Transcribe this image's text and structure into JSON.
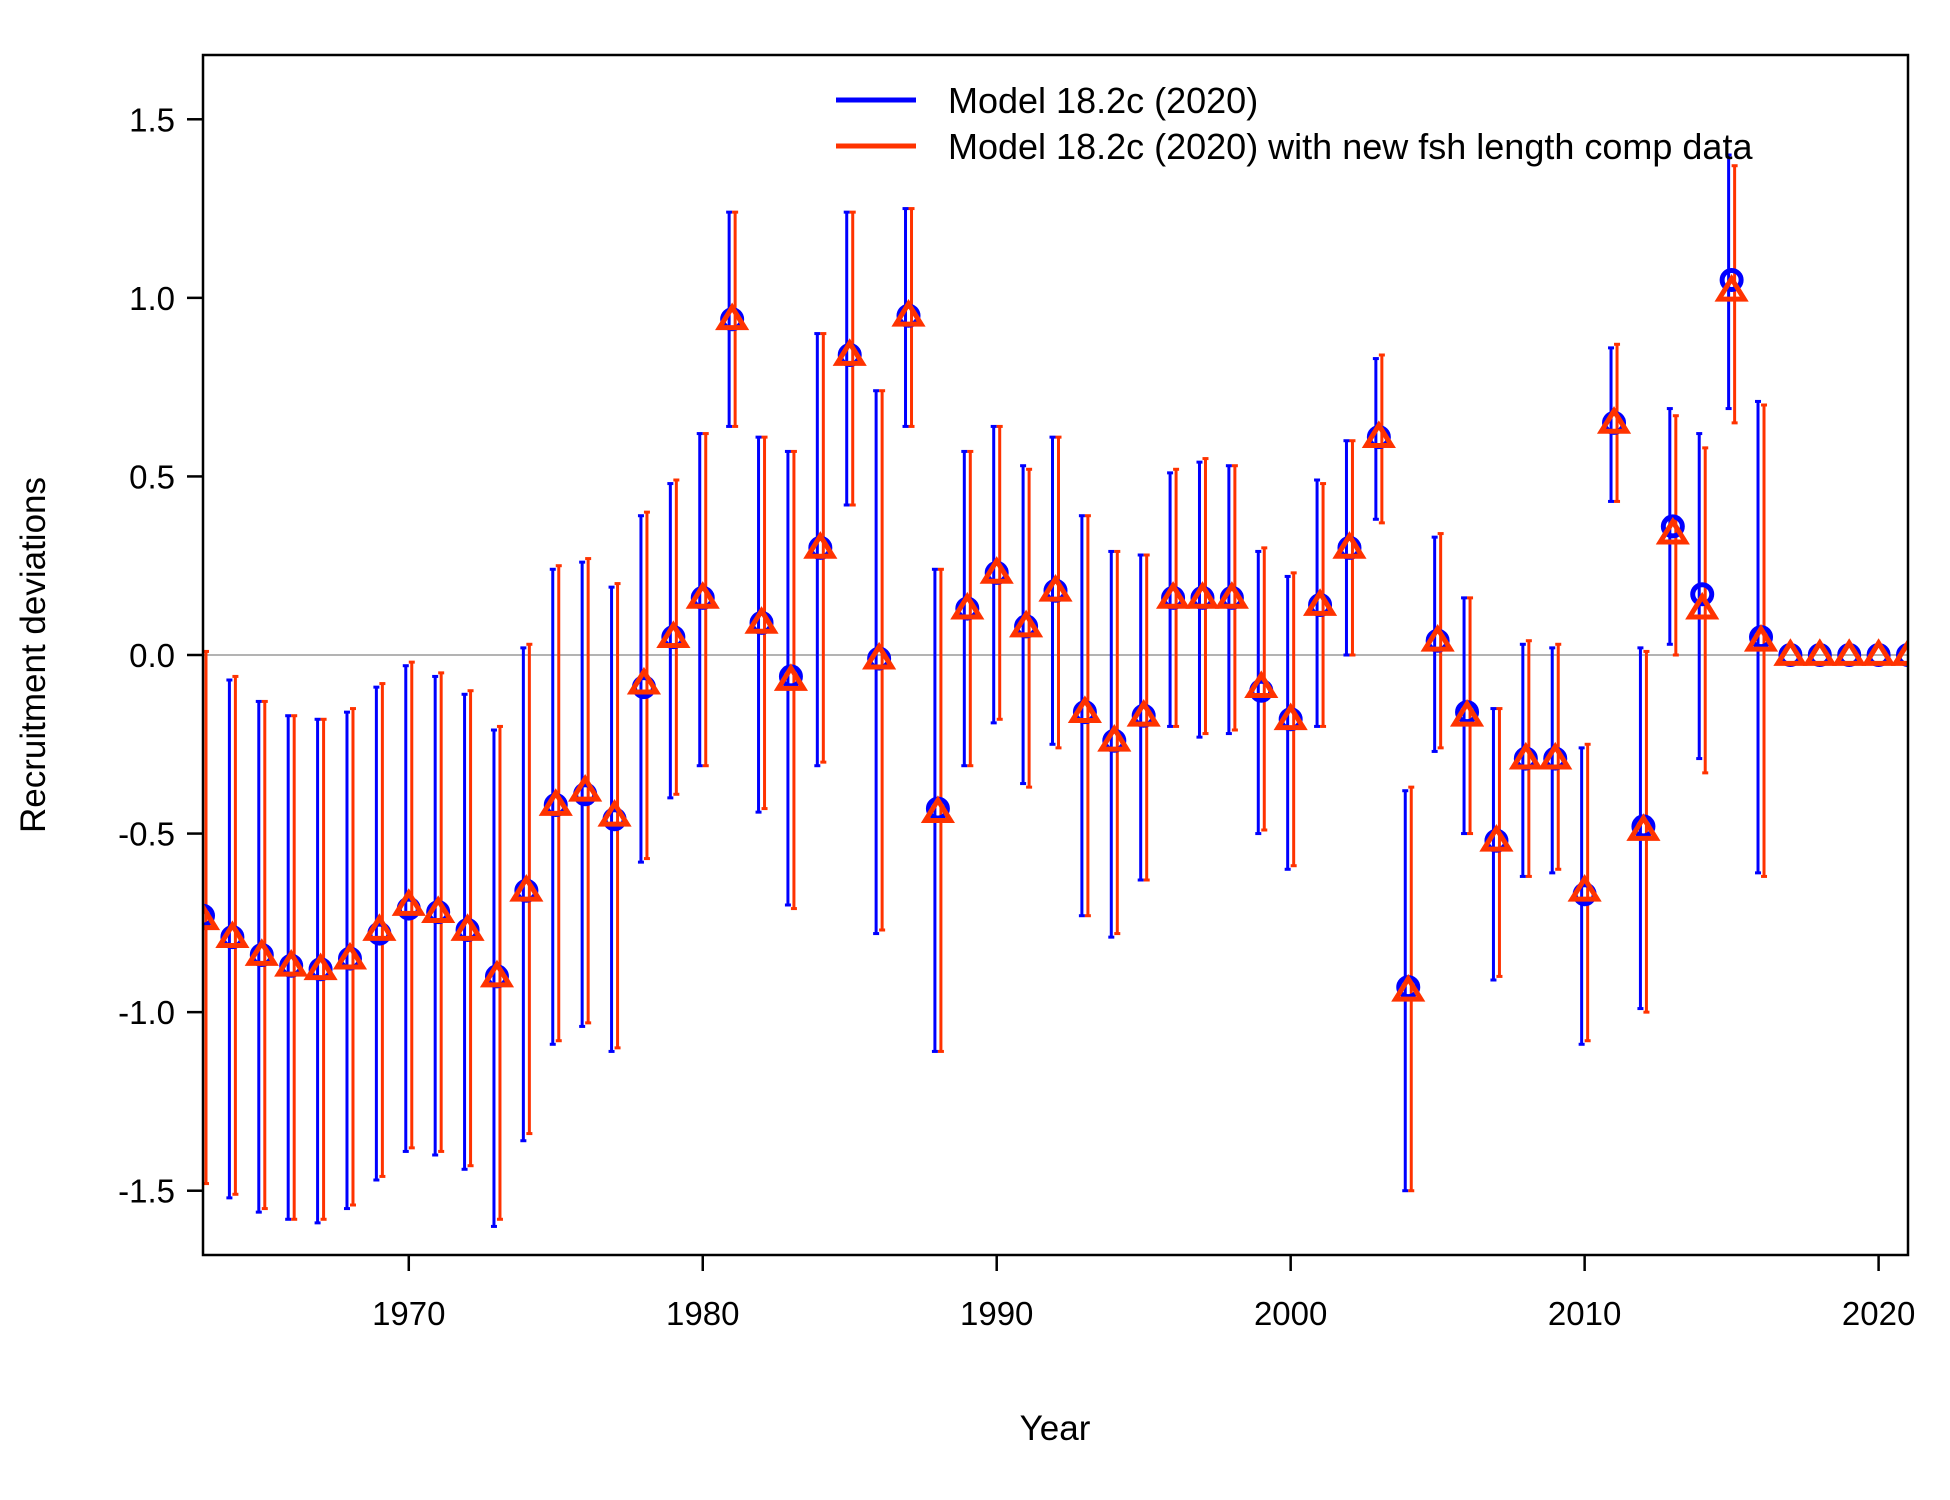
{
  "chart_data": {
    "type": "scatter",
    "xlabel": "Year",
    "ylabel": "Recruitment deviations",
    "xlim": [
      1963,
      2021
    ],
    "ylim": [
      -1.68,
      1.68
    ],
    "x_ticks": [
      1970,
      1980,
      1990,
      2000,
      2010,
      2020
    ],
    "x_tick_labels": [
      "1970",
      "1980",
      "1990",
      "2000",
      "2010",
      "2020"
    ],
    "y_ticks": [
      -1.5,
      -1.0,
      -0.5,
      0.0,
      0.5,
      1.0,
      1.5
    ],
    "y_tick_labels": [
      "-1.5",
      "-1.0",
      "-0.5",
      "0.0",
      "0.5",
      "1.0",
      "1.5"
    ],
    "reference_line_y": 0,
    "grid": false,
    "legend_position": "top-right",
    "series": [
      {
        "name": "Model 18.2c (2020)",
        "color": "#0000ff",
        "marker": "circle",
        "points": [
          {
            "x": 1963,
            "y": -0.73,
            "lo": -1.48,
            "hi": 0.01
          },
          {
            "x": 1964,
            "y": -0.79,
            "lo": -1.52,
            "hi": -0.07
          },
          {
            "x": 1965,
            "y": -0.84,
            "lo": -1.56,
            "hi": -0.13
          },
          {
            "x": 1966,
            "y": -0.87,
            "lo": -1.58,
            "hi": -0.17
          },
          {
            "x": 1967,
            "y": -0.88,
            "lo": -1.59,
            "hi": -0.18
          },
          {
            "x": 1968,
            "y": -0.85,
            "lo": -1.55,
            "hi": -0.16
          },
          {
            "x": 1969,
            "y": -0.78,
            "lo": -1.47,
            "hi": -0.09
          },
          {
            "x": 1970,
            "y": -0.71,
            "lo": -1.39,
            "hi": -0.03
          },
          {
            "x": 1971,
            "y": -0.72,
            "lo": -1.4,
            "hi": -0.06
          },
          {
            "x": 1972,
            "y": -0.77,
            "lo": -1.44,
            "hi": -0.11
          },
          {
            "x": 1973,
            "y": -0.9,
            "lo": -1.6,
            "hi": -0.21
          },
          {
            "x": 1974,
            "y": -0.66,
            "lo": -1.36,
            "hi": 0.02
          },
          {
            "x": 1975,
            "y": -0.42,
            "lo": -1.09,
            "hi": 0.24
          },
          {
            "x": 1976,
            "y": -0.39,
            "lo": -1.04,
            "hi": 0.26
          },
          {
            "x": 1977,
            "y": -0.46,
            "lo": -1.11,
            "hi": 0.19
          },
          {
            "x": 1978,
            "y": -0.09,
            "lo": -0.58,
            "hi": 0.39
          },
          {
            "x": 1979,
            "y": 0.05,
            "lo": -0.4,
            "hi": 0.48
          },
          {
            "x": 1980,
            "y": 0.16,
            "lo": -0.31,
            "hi": 0.62
          },
          {
            "x": 1981,
            "y": 0.94,
            "lo": 0.64,
            "hi": 1.24
          },
          {
            "x": 1982,
            "y": 0.09,
            "lo": -0.44,
            "hi": 0.61
          },
          {
            "x": 1983,
            "y": -0.06,
            "lo": -0.7,
            "hi": 0.57
          },
          {
            "x": 1984,
            "y": 0.3,
            "lo": -0.31,
            "hi": 0.9
          },
          {
            "x": 1985,
            "y": 0.84,
            "lo": 0.42,
            "hi": 1.24
          },
          {
            "x": 1986,
            "y": -0.01,
            "lo": -0.78,
            "hi": 0.74
          },
          {
            "x": 1987,
            "y": 0.95,
            "lo": 0.64,
            "hi": 1.25
          },
          {
            "x": 1988,
            "y": -0.43,
            "lo": -1.11,
            "hi": 0.24
          },
          {
            "x": 1989,
            "y": 0.13,
            "lo": -0.31,
            "hi": 0.57
          },
          {
            "x": 1990,
            "y": 0.23,
            "lo": -0.19,
            "hi": 0.64
          },
          {
            "x": 1991,
            "y": 0.08,
            "lo": -0.36,
            "hi": 0.53
          },
          {
            "x": 1992,
            "y": 0.18,
            "lo": -0.25,
            "hi": 0.61
          },
          {
            "x": 1993,
            "y": -0.16,
            "lo": -0.73,
            "hi": 0.39
          },
          {
            "x": 1994,
            "y": -0.24,
            "lo": -0.79,
            "hi": 0.29
          },
          {
            "x": 1995,
            "y": -0.17,
            "lo": -0.63,
            "hi": 0.28
          },
          {
            "x": 1996,
            "y": 0.16,
            "lo": -0.2,
            "hi": 0.51
          },
          {
            "x": 1997,
            "y": 0.16,
            "lo": -0.23,
            "hi": 0.54
          },
          {
            "x": 1998,
            "y": 0.16,
            "lo": -0.22,
            "hi": 0.53
          },
          {
            "x": 1999,
            "y": -0.1,
            "lo": -0.5,
            "hi": 0.29
          },
          {
            "x": 2000,
            "y": -0.18,
            "lo": -0.6,
            "hi": 0.22
          },
          {
            "x": 2001,
            "y": 0.14,
            "lo": -0.2,
            "hi": 0.49
          },
          {
            "x": 2002,
            "y": 0.3,
            "lo": 0.0,
            "hi": 0.6
          },
          {
            "x": 2003,
            "y": 0.61,
            "lo": 0.38,
            "hi": 0.83
          },
          {
            "x": 2004,
            "y": -0.93,
            "lo": -1.5,
            "hi": -0.38
          },
          {
            "x": 2005,
            "y": 0.04,
            "lo": -0.27,
            "hi": 0.33
          },
          {
            "x": 2006,
            "y": -0.16,
            "lo": -0.5,
            "hi": 0.16
          },
          {
            "x": 2007,
            "y": -0.52,
            "lo": -0.91,
            "hi": -0.15
          },
          {
            "x": 2008,
            "y": -0.29,
            "lo": -0.62,
            "hi": 0.03
          },
          {
            "x": 2009,
            "y": -0.29,
            "lo": -0.61,
            "hi": 0.02
          },
          {
            "x": 2010,
            "y": -0.67,
            "lo": -1.09,
            "hi": -0.26
          },
          {
            "x": 2011,
            "y": 0.65,
            "lo": 0.43,
            "hi": 0.86
          },
          {
            "x": 2012,
            "y": -0.48,
            "lo": -0.99,
            "hi": 0.02
          },
          {
            "x": 2013,
            "y": 0.36,
            "lo": 0.03,
            "hi": 0.69
          },
          {
            "x": 2014,
            "y": 0.17,
            "lo": -0.29,
            "hi": 0.62
          },
          {
            "x": 2015,
            "y": 1.05,
            "lo": 0.69,
            "hi": 1.4
          },
          {
            "x": 2016,
            "y": 0.05,
            "lo": -0.61,
            "hi": 0.71
          },
          {
            "x": 2017,
            "y": 0.0,
            "lo": 0.0,
            "hi": 0.0
          },
          {
            "x": 2018,
            "y": 0.0,
            "lo": 0.0,
            "hi": 0.0
          },
          {
            "x": 2019,
            "y": 0.0,
            "lo": 0.0,
            "hi": 0.0
          },
          {
            "x": 2020,
            "y": 0.0,
            "lo": 0.0,
            "hi": 0.0
          },
          {
            "x": 2021,
            "y": 0.0,
            "lo": 0.0,
            "hi": 0.0
          }
        ]
      },
      {
        "name": "Model 18.2c (2020) with new fsh length comp data",
        "color": "#ff3300",
        "marker": "triangle",
        "points": [
          {
            "x": 1963,
            "y": -0.74,
            "lo": -1.48,
            "hi": 0.01
          },
          {
            "x": 1964,
            "y": -0.79,
            "lo": -1.51,
            "hi": -0.06
          },
          {
            "x": 1965,
            "y": -0.84,
            "lo": -1.55,
            "hi": -0.13
          },
          {
            "x": 1966,
            "y": -0.87,
            "lo": -1.58,
            "hi": -0.17
          },
          {
            "x": 1967,
            "y": -0.88,
            "lo": -1.58,
            "hi": -0.18
          },
          {
            "x": 1968,
            "y": -0.85,
            "lo": -1.54,
            "hi": -0.15
          },
          {
            "x": 1969,
            "y": -0.77,
            "lo": -1.46,
            "hi": -0.08
          },
          {
            "x": 1970,
            "y": -0.7,
            "lo": -1.38,
            "hi": -0.02
          },
          {
            "x": 1971,
            "y": -0.72,
            "lo": -1.39,
            "hi": -0.05
          },
          {
            "x": 1972,
            "y": -0.77,
            "lo": -1.43,
            "hi": -0.1
          },
          {
            "x": 1973,
            "y": -0.9,
            "lo": -1.58,
            "hi": -0.2
          },
          {
            "x": 1974,
            "y": -0.66,
            "lo": -1.34,
            "hi": 0.03
          },
          {
            "x": 1975,
            "y": -0.42,
            "lo": -1.08,
            "hi": 0.25
          },
          {
            "x": 1976,
            "y": -0.38,
            "lo": -1.03,
            "hi": 0.27
          },
          {
            "x": 1977,
            "y": -0.45,
            "lo": -1.1,
            "hi": 0.2
          },
          {
            "x": 1978,
            "y": -0.08,
            "lo": -0.57,
            "hi": 0.4
          },
          {
            "x": 1979,
            "y": 0.05,
            "lo": -0.39,
            "hi": 0.49
          },
          {
            "x": 1980,
            "y": 0.16,
            "lo": -0.31,
            "hi": 0.62
          },
          {
            "x": 1981,
            "y": 0.94,
            "lo": 0.64,
            "hi": 1.24
          },
          {
            "x": 1982,
            "y": 0.09,
            "lo": -0.43,
            "hi": 0.61
          },
          {
            "x": 1983,
            "y": -0.07,
            "lo": -0.71,
            "hi": 0.57
          },
          {
            "x": 1984,
            "y": 0.3,
            "lo": -0.3,
            "hi": 0.9
          },
          {
            "x": 1985,
            "y": 0.84,
            "lo": 0.42,
            "hi": 1.24
          },
          {
            "x": 1986,
            "y": -0.01,
            "lo": -0.77,
            "hi": 0.74
          },
          {
            "x": 1987,
            "y": 0.95,
            "lo": 0.64,
            "hi": 1.25
          },
          {
            "x": 1988,
            "y": -0.44,
            "lo": -1.11,
            "hi": 0.24
          },
          {
            "x": 1989,
            "y": 0.13,
            "lo": -0.31,
            "hi": 0.57
          },
          {
            "x": 1990,
            "y": 0.23,
            "lo": -0.18,
            "hi": 0.64
          },
          {
            "x": 1991,
            "y": 0.08,
            "lo": -0.37,
            "hi": 0.52
          },
          {
            "x": 1992,
            "y": 0.18,
            "lo": -0.26,
            "hi": 0.61
          },
          {
            "x": 1993,
            "y": -0.16,
            "lo": -0.73,
            "hi": 0.39
          },
          {
            "x": 1994,
            "y": -0.24,
            "lo": -0.78,
            "hi": 0.29
          },
          {
            "x": 1995,
            "y": -0.17,
            "lo": -0.63,
            "hi": 0.28
          },
          {
            "x": 1996,
            "y": 0.16,
            "lo": -0.2,
            "hi": 0.52
          },
          {
            "x": 1997,
            "y": 0.16,
            "lo": -0.22,
            "hi": 0.55
          },
          {
            "x": 1998,
            "y": 0.16,
            "lo": -0.21,
            "hi": 0.53
          },
          {
            "x": 1999,
            "y": -0.09,
            "lo": -0.49,
            "hi": 0.3
          },
          {
            "x": 2000,
            "y": -0.18,
            "lo": -0.59,
            "hi": 0.23
          },
          {
            "x": 2001,
            "y": 0.14,
            "lo": -0.2,
            "hi": 0.48
          },
          {
            "x": 2002,
            "y": 0.3,
            "lo": 0.0,
            "hi": 0.6
          },
          {
            "x": 2003,
            "y": 0.61,
            "lo": 0.37,
            "hi": 0.84
          },
          {
            "x": 2004,
            "y": -0.94,
            "lo": -1.5,
            "hi": -0.37
          },
          {
            "x": 2005,
            "y": 0.04,
            "lo": -0.26,
            "hi": 0.34
          },
          {
            "x": 2006,
            "y": -0.17,
            "lo": -0.5,
            "hi": 0.16
          },
          {
            "x": 2007,
            "y": -0.52,
            "lo": -0.9,
            "hi": -0.15
          },
          {
            "x": 2008,
            "y": -0.29,
            "lo": -0.62,
            "hi": 0.04
          },
          {
            "x": 2009,
            "y": -0.29,
            "lo": -0.6,
            "hi": 0.03
          },
          {
            "x": 2010,
            "y": -0.66,
            "lo": -1.08,
            "hi": -0.25
          },
          {
            "x": 2011,
            "y": 0.65,
            "lo": 0.43,
            "hi": 0.87
          },
          {
            "x": 2012,
            "y": -0.49,
            "lo": -1.0,
            "hi": 0.01
          },
          {
            "x": 2013,
            "y": 0.34,
            "lo": 0.0,
            "hi": 0.67
          },
          {
            "x": 2014,
            "y": 0.13,
            "lo": -0.33,
            "hi": 0.58
          },
          {
            "x": 2015,
            "y": 1.02,
            "lo": 0.65,
            "hi": 1.37
          },
          {
            "x": 2016,
            "y": 0.04,
            "lo": -0.62,
            "hi": 0.7
          },
          {
            "x": 2017,
            "y": 0.0,
            "lo": 0.0,
            "hi": 0.0
          },
          {
            "x": 2018,
            "y": 0.0,
            "lo": 0.0,
            "hi": 0.0
          },
          {
            "x": 2019,
            "y": 0.0,
            "lo": 0.0,
            "hi": 0.0
          },
          {
            "x": 2020,
            "y": 0.0,
            "lo": 0.0,
            "hi": 0.0
          },
          {
            "x": 2021,
            "y": 0.0,
            "lo": 0.0,
            "hi": 0.0
          }
        ]
      }
    ]
  }
}
